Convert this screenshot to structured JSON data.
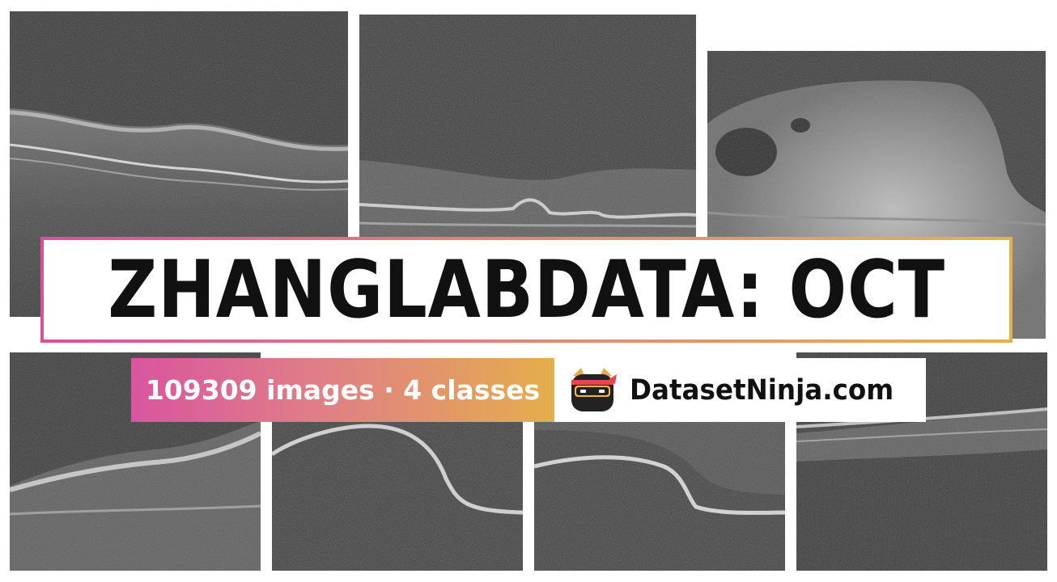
{
  "banner": {
    "title": "ZHANGLABDATA: OCT",
    "stats": "109309 images · 4 classes",
    "brand": "DatasetNinja.com"
  },
  "colors": {
    "gradient_start": "#d9559f",
    "gradient_mid": "#e07f86",
    "gradient_end": "#e4ae4c",
    "scan_background": "#3a3a3a"
  },
  "tiles": [
    {
      "name": "oct-scan-1"
    },
    {
      "name": "oct-scan-2"
    },
    {
      "name": "oct-scan-3"
    },
    {
      "name": "oct-scan-4"
    },
    {
      "name": "oct-scan-5"
    },
    {
      "name": "oct-scan-6"
    },
    {
      "name": "oct-scan-7"
    }
  ]
}
